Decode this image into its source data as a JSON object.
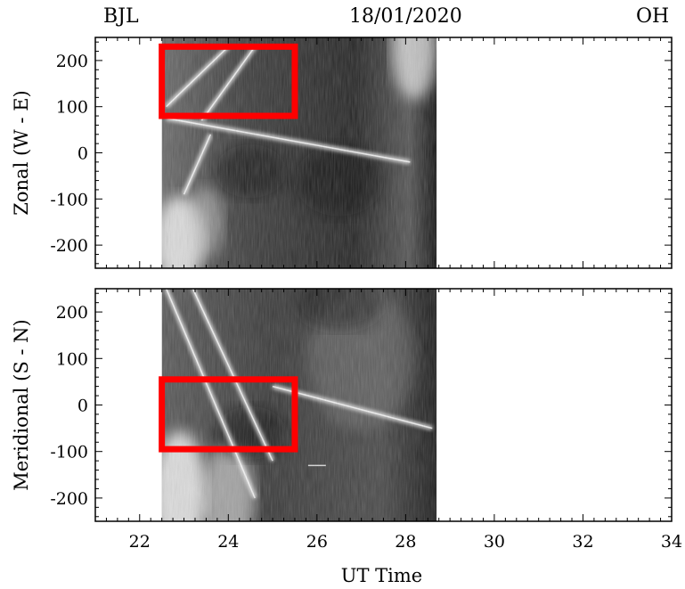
{
  "header": {
    "station": "BJL",
    "date": "18/01/2020",
    "emission": "OH"
  },
  "chart_data": [
    {
      "type": "heatmap",
      "panel": "top",
      "ylabel": "Zonal (W - E)",
      "xlabel": "",
      "xlim": [
        21,
        34
      ],
      "ylim": [
        -250,
        250
      ],
      "x_ticks": [
        22,
        24,
        26,
        28,
        30,
        32,
        34
      ],
      "y_ticks": [
        -200,
        -100,
        0,
        100,
        200
      ],
      "data_x_range": [
        22.5,
        28.7
      ],
      "colormap": "grayscale",
      "features": [
        {
          "kind": "streak",
          "x": [
            22.6,
            28.1
          ],
          "y": [
            75,
            -20
          ]
        },
        {
          "kind": "streak",
          "x": [
            22.6,
            24.0
          ],
          "y": [
            100,
            230
          ]
        },
        {
          "kind": "streak",
          "x": [
            23.4,
            24.6
          ],
          "y": [
            70,
            230
          ]
        },
        {
          "kind": "streak",
          "x": [
            23.0,
            23.6
          ],
          "y": [
            -90,
            40
          ]
        }
      ],
      "highlight_box": {
        "x": [
          22.5,
          25.5
        ],
        "y": [
          80,
          230
        ],
        "color": "#ff0000"
      },
      "grid": false
    },
    {
      "type": "heatmap",
      "panel": "bottom",
      "ylabel": "Meridional (S - N)",
      "xlabel": "UT Time",
      "xlim": [
        21,
        34
      ],
      "ylim": [
        -250,
        250
      ],
      "x_ticks": [
        22,
        24,
        26,
        28,
        30,
        32,
        34
      ],
      "y_ticks": [
        -200,
        -100,
        0,
        100,
        200
      ],
      "data_x_range": [
        22.5,
        28.7
      ],
      "colormap": "grayscale",
      "features": [
        {
          "kind": "streak",
          "x": [
            22.6,
            24.6
          ],
          "y": [
            250,
            -200
          ]
        },
        {
          "kind": "streak",
          "x": [
            23.2,
            25.0
          ],
          "y": [
            250,
            -120
          ]
        },
        {
          "kind": "streak",
          "x": [
            25.0,
            28.6
          ],
          "y": [
            40,
            -50
          ]
        },
        {
          "kind": "streak",
          "x": [
            25.8,
            26.2
          ],
          "y": [
            -130,
            -130
          ]
        }
      ],
      "highlight_box": {
        "x": [
          22.5,
          25.5
        ],
        "y": [
          -95,
          55
        ],
        "color": "#ff0000"
      },
      "grid": false
    }
  ]
}
